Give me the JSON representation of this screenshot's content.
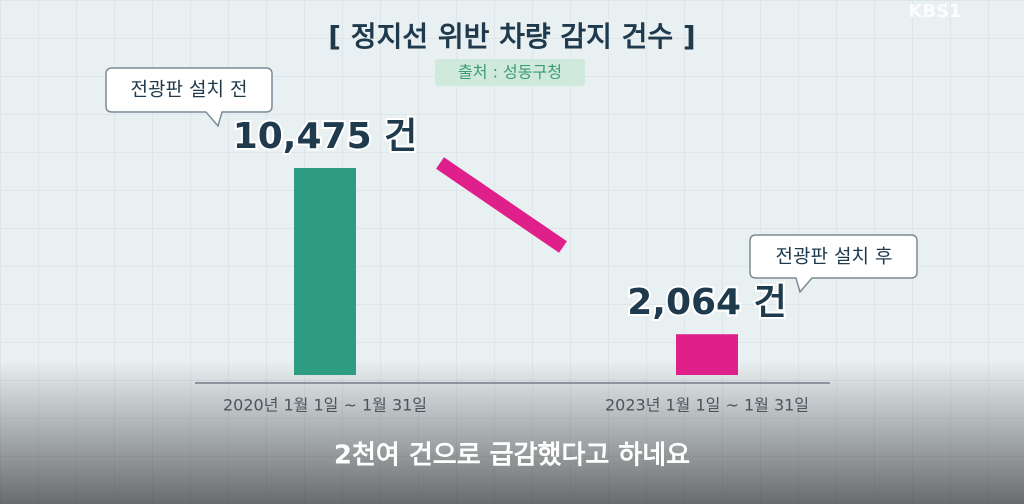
{
  "chart_data": {
    "type": "bar",
    "title": "[ 정지선 위반 차량 감지 건수 ]",
    "subtitle": "출처 : 성동구청",
    "logo": "KBS1",
    "categories": [
      "2020년 1월 1일 ~ 1월 31일",
      "2023년 1월 1일 ~ 1월 31일"
    ],
    "values": [
      10475,
      2064
    ],
    "value_labels": [
      "10,475 건",
      "2,064 건"
    ],
    "colors": [
      "#2e9b83",
      "#e0208a"
    ],
    "annotations": [
      "전광판 설치 전",
      "전광판 설치 후"
    ],
    "caption": "2천여 건으로 급감했다고 하네요"
  }
}
